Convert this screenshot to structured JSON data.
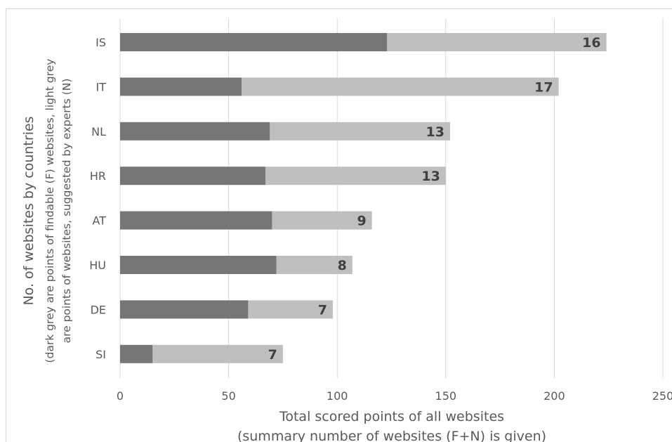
{
  "chart_data": {
    "type": "bar",
    "orientation": "horizontal",
    "stacked": true,
    "categories": [
      "IS",
      "IT",
      "NL",
      "HR",
      "AT",
      "HU",
      "DE",
      "SI"
    ],
    "series": [
      {
        "values": [
          123,
          56,
          69,
          67,
          70,
          72,
          59,
          15
        ],
        "color": "#767676"
      },
      {
        "values": [
          101,
          146,
          83,
          83,
          46,
          35,
          39,
          60
        ],
        "color": "#bfbfbf"
      }
    ],
    "bar_labels": [
      "16",
      "17",
      "13",
      "13",
      "9",
      "8",
      "7",
      "7"
    ],
    "xlabel": "Total scored points of all websites",
    "xlabel_sub": "(summary number of websites (F+N) is given)",
    "ylabel": "No. of websites by countries",
    "ylabel_sub1": "(dark grey are points of findable (F) websites, light grey",
    "ylabel_sub2": "are points of websites, suggested by experts (N)",
    "xlim": [
      0,
      250
    ],
    "xticks": [
      0,
      50,
      100,
      150,
      200,
      250
    ],
    "grid": "vertical",
    "legend": "none"
  }
}
